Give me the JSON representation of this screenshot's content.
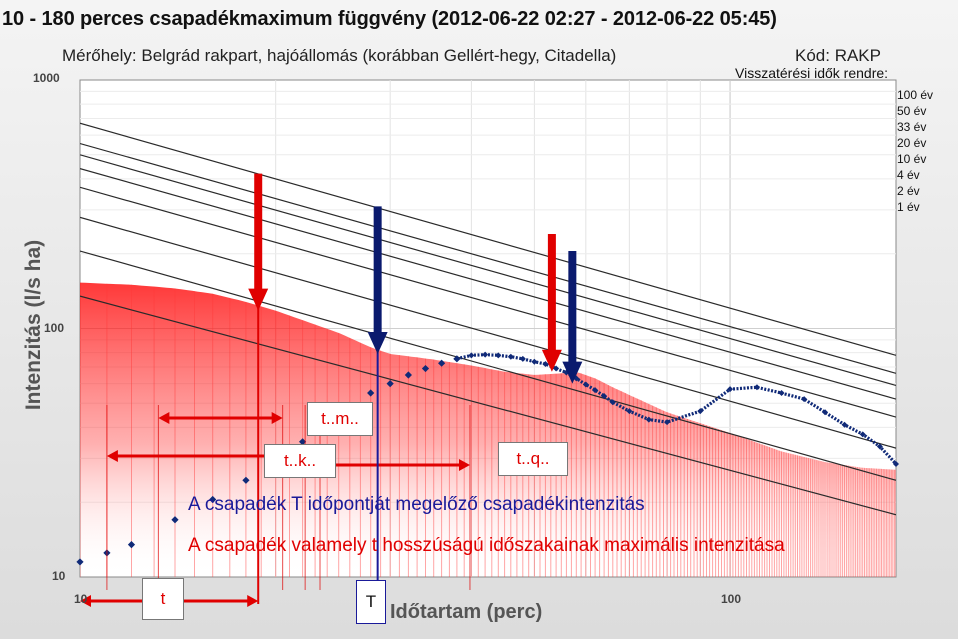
{
  "chart_data": {
    "type": "line",
    "title": "10 - 180 perces csapadékmaximum függvény (2012-06-22 02:27 - 2012-06-22 05:45)",
    "subtitle": "Mérőhely: Belgrád rakpart, hajóállomás (korábban Gellért-hegy, Citadella)",
    "station_code": "Kód: RAKP",
    "xlabel": "Időtartam (perc)",
    "ylabel": "Intenzitás (l/s ha)",
    "x_scale": "log",
    "y_scale": "log",
    "xlim": [
      10,
      180
    ],
    "ylim": [
      10,
      1000
    ],
    "x_tick_labels": [
      "10",
      "100"
    ],
    "y_tick_labels": [
      "10",
      "100",
      "1000"
    ],
    "grid": true,
    "legend_position": "right",
    "return_period_header": "Visszatérési idők rendre:",
    "return_periods": [
      {
        "name": "100 év",
        "start": 670,
        "end": 78
      },
      {
        "name": "50 év",
        "start": 555,
        "end": 66
      },
      {
        "name": "33 év",
        "start": 500,
        "end": 59
      },
      {
        "name": "20 év",
        "start": 440,
        "end": 52
      },
      {
        "name": "10 év",
        "start": 370,
        "end": 44
      },
      {
        "name": "4 év",
        "start": 280,
        "end": 33
      },
      {
        "name": "2 év",
        "start": 205,
        "end": 24.5
      },
      {
        "name": "1 év",
        "start": 135,
        "end": 17.8
      }
    ],
    "max_intensity_profile": {
      "x": [
        10,
        12,
        14,
        16,
        18,
        20,
        22,
        25,
        28,
        30,
        35,
        40,
        45,
        50,
        55,
        58,
        62,
        66,
        70,
        80,
        100,
        120,
        140,
        160,
        180
      ],
      "y": [
        153,
        150,
        145,
        138,
        128,
        118,
        108,
        96,
        84,
        79,
        75,
        71,
        67,
        65,
        66,
        67,
        63,
        58,
        54,
        46,
        38,
        32,
        29,
        27.5,
        27
      ]
    },
    "preceding_intensity_series": {
      "x": [
        10,
        11,
        12,
        14,
        16,
        18,
        20,
        22,
        24,
        26,
        28,
        30,
        32,
        34,
        36,
        38,
        40,
        42,
        44,
        46,
        48,
        50,
        52,
        54,
        56,
        58,
        60,
        62,
        64,
        66,
        70,
        75,
        80,
        90,
        100,
        110,
        120,
        130,
        140,
        150,
        160,
        170,
        180
      ],
      "y": [
        11.5,
        12.5,
        13.5,
        17,
        20.5,
        24.5,
        29.5,
        35,
        42,
        49,
        55,
        60,
        65,
        69,
        72.5,
        75.5,
        78,
        78.5,
        78,
        77,
        75.5,
        73.5,
        72,
        69,
        66.5,
        63,
        59.5,
        56.5,
        53.5,
        50.5,
        46.5,
        43,
        42,
        46.5,
        57,
        58,
        55,
        52,
        46,
        41,
        37.5,
        33.5,
        28.5
      ]
    },
    "markers": [
      {
        "color": "red",
        "x": 18.8,
        "y_top": 420,
        "y_tip": 118
      },
      {
        "color": "navy",
        "x": 28.7,
        "y_top": 310,
        "y_tip": 79
      },
      {
        "color": "red",
        "x": 53.2,
        "y_top": 240,
        "y_tip": 67
      },
      {
        "color": "navy",
        "x": 57.2,
        "y_top": 205,
        "y_tip": 60
      }
    ],
    "labels": {
      "t": "t",
      "T": "T",
      "t_m": "t..m..",
      "t_k": "t..k..",
      "t_q": "t..q.."
    },
    "annotations": {
      "blue": "A csapadék T időpontját megelőző csapadékintenzitás",
      "red": "A csapadék valamely t hosszúságú időszakainak maximális intenzitása"
    },
    "colors": {
      "background": "#e8e8e8",
      "profile_fill": "#ff0000",
      "series": "#102a78",
      "arrow_red": "#e00000",
      "arrow_navy": "#0a1a6e",
      "annotation_blue": "#1a1a99",
      "annotation_red": "#e00000"
    }
  }
}
